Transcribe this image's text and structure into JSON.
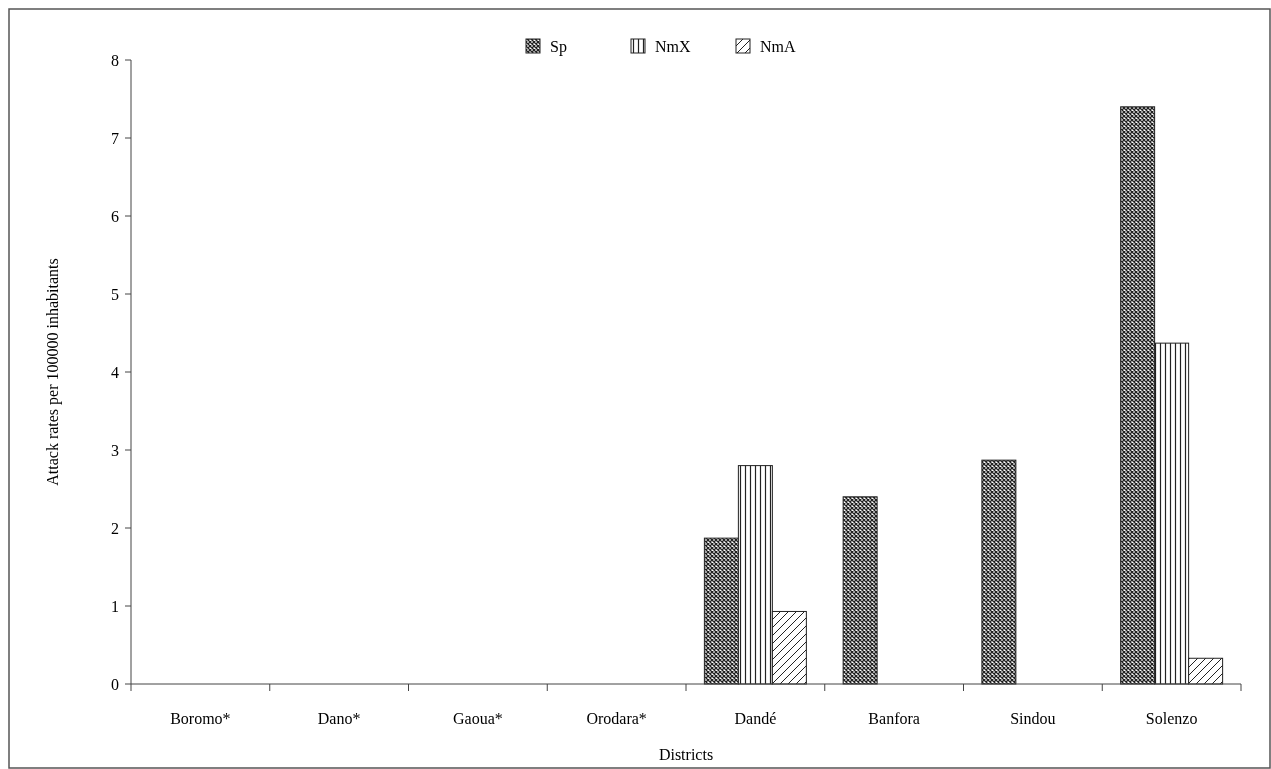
{
  "chart_data": {
    "type": "bar",
    "xlabel": "Districts",
    "ylabel": "Attack rates per 100000 inhabitants",
    "categories": [
      "Boromo*",
      "Dano*",
      "Gaoua*",
      "Orodara*",
      "Dandé",
      "Banfora",
      "Sindou",
      "Solenzo"
    ],
    "series": [
      {
        "name": "Sp",
        "color": "#222222",
        "values": [
          0,
          0,
          0,
          0,
          1.87,
          2.4,
          2.87,
          7.4
        ]
      },
      {
        "name": "NmX",
        "color": "#222222",
        "values": [
          0,
          0,
          0,
          0,
          2.8,
          0,
          0,
          4.37
        ]
      },
      {
        "name": "NmA",
        "color": "#222222",
        "values": [
          0,
          0,
          0,
          0,
          0.93,
          0,
          0,
          0.33
        ]
      }
    ],
    "ylim": [
      0,
      8
    ],
    "yticks": [
      0,
      1,
      2,
      3,
      4,
      5,
      6,
      7,
      8
    ],
    "grid": false,
    "legend": "top"
  }
}
